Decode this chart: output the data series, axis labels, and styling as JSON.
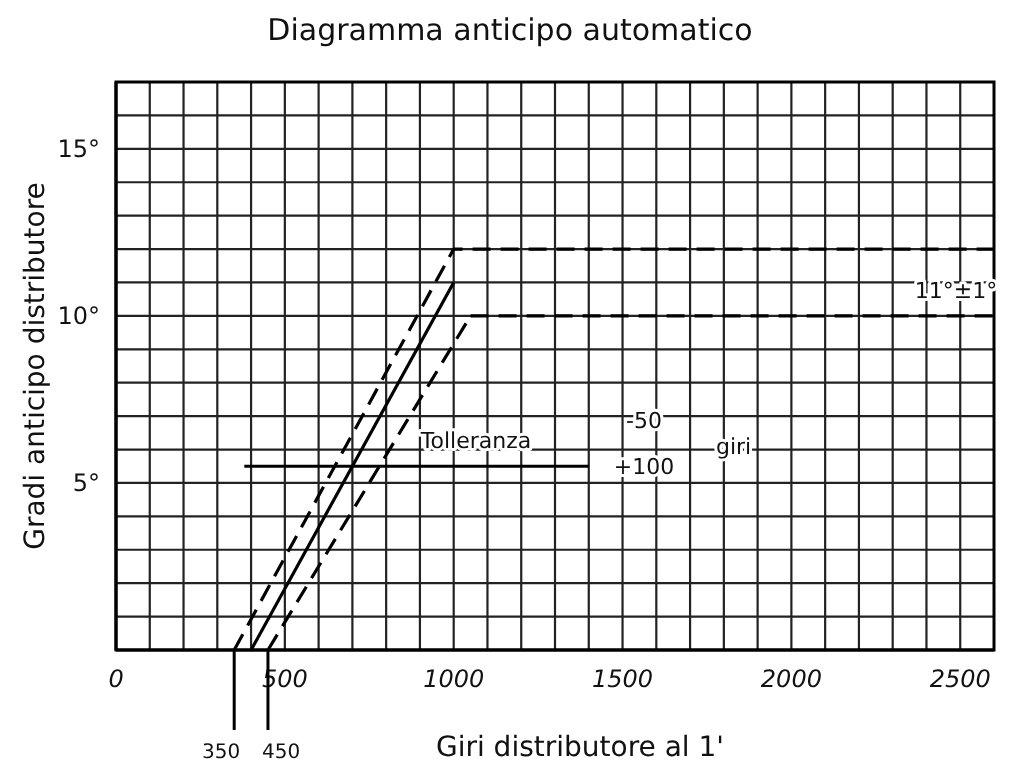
{
  "chart_data": {
    "type": "line",
    "title": "Diagramma anticipo automatico",
    "xlabel": "Giri distributore al 1'",
    "ylabel": "Gradi anticipo distributore",
    "xlim": [
      0,
      2600
    ],
    "ylim": [
      0,
      17
    ],
    "xticks": [
      {
        "value": 0,
        "label": "0"
      },
      {
        "value": 100,
        "label": null
      },
      {
        "value": 200,
        "label": null
      },
      {
        "value": 300,
        "label": null
      },
      {
        "value": 400,
        "label": null
      },
      {
        "value": 500,
        "label": "500"
      },
      {
        "value": 600,
        "label": null
      },
      {
        "value": 700,
        "label": null
      },
      {
        "value": 800,
        "label": null
      },
      {
        "value": 900,
        "label": null
      },
      {
        "value": 1000,
        "label": "1000"
      },
      {
        "value": 1100,
        "label": null
      },
      {
        "value": 1200,
        "label": null
      },
      {
        "value": 1300,
        "label": null
      },
      {
        "value": 1400,
        "label": null
      },
      {
        "value": 1500,
        "label": "1500"
      },
      {
        "value": 1600,
        "label": null
      },
      {
        "value": 1700,
        "label": null
      },
      {
        "value": 1800,
        "label": null
      },
      {
        "value": 1900,
        "label": null
      },
      {
        "value": 2000,
        "label": "2000"
      },
      {
        "value": 2100,
        "label": null
      },
      {
        "value": 2200,
        "label": null
      },
      {
        "value": 2300,
        "label": null
      },
      {
        "value": 2400,
        "label": null
      },
      {
        "value": 2500,
        "label": "2500"
      }
    ],
    "yticks": [
      {
        "value": 0,
        "label": null
      },
      {
        "value": 1,
        "label": null
      },
      {
        "value": 2,
        "label": null
      },
      {
        "value": 3,
        "label": null
      },
      {
        "value": 4,
        "label": null
      },
      {
        "value": 5,
        "label": "5°"
      },
      {
        "value": 6,
        "label": null
      },
      {
        "value": 7,
        "label": null
      },
      {
        "value": 8,
        "label": null
      },
      {
        "value": 9,
        "label": null
      },
      {
        "value": 10,
        "label": "10°"
      },
      {
        "value": 11,
        "label": null
      },
      {
        "value": 12,
        "label": null
      },
      {
        "value": 13,
        "label": null
      },
      {
        "value": 14,
        "label": null
      },
      {
        "value": 15,
        "label": "15°"
      },
      {
        "value": 16,
        "label": null
      },
      {
        "value": 17,
        "label": null
      }
    ],
    "grid": true,
    "marker": "none",
    "series": [
      {
        "color": "#000000",
        "line_style": "solid",
        "x": [
          400,
          1000
        ],
        "values": [
          0,
          11
        ]
      },
      {
        "color": "#000000",
        "line_style": "dashed",
        "x": [
          350,
          1000,
          2600
        ],
        "values": [
          0,
          12,
          12
        ]
      },
      {
        "color": "#000000",
        "line_style": "dashed",
        "x": [
          450,
          1050
        ],
        "values": [
          0,
          10
        ]
      },
      {
        "color": "#000000",
        "line_style": "dashed",
        "x": [
          1050,
          2600
        ],
        "values": [
          10,
          10
        ]
      },
      {
        "color": "#000000",
        "line_style": "solid",
        "x": [
          380,
          1400
        ],
        "values": [
          5.5,
          5.5
        ]
      }
    ],
    "annotations": [
      "11°±1°",
      "Tolleranza",
      "-50",
      "+100",
      "giri",
      {
        "text": "350",
        "x": 350,
        "y": 0
      },
      {
        "text": "450",
        "x": 450,
        "y": 0
      }
    ]
  }
}
